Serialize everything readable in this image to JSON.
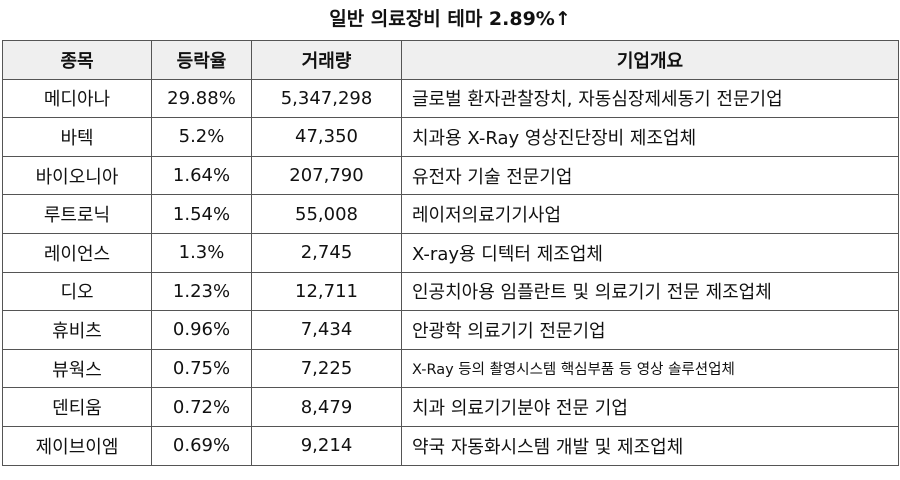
{
  "title": "일반 의료장비 테마 2.89%↑",
  "table": {
    "headers": [
      "종목",
      "등락율",
      "거래량",
      "기업개요"
    ],
    "rows": [
      {
        "name": "메디아나",
        "change": "29.88%",
        "volume": "5,347,298",
        "desc": "글로벌 환자관찰장치, 자동심장제세동기 전문기업"
      },
      {
        "name": "바텍",
        "change": "5.2%",
        "volume": "47,350",
        "desc": "치과용 X-Ray 영상진단장비 제조업체"
      },
      {
        "name": "바이오니아",
        "change": "1.64%",
        "volume": "207,790",
        "desc": "유전자 기술 전문기업"
      },
      {
        "name": "루트로닉",
        "change": "1.54%",
        "volume": "55,008",
        "desc": "레이저의료기기사업"
      },
      {
        "name": "레이언스",
        "change": "1.3%",
        "volume": "2,745",
        "desc": "X-ray용 디텍터 제조업체"
      },
      {
        "name": "디오",
        "change": "1.23%",
        "volume": "12,711",
        "desc": "인공치아용 임플란트 및 의료기기 전문 제조업체"
      },
      {
        "name": "휴비츠",
        "change": "0.96%",
        "volume": "7,434",
        "desc": "안광학 의료기기 전문기업"
      },
      {
        "name": "뷰웍스",
        "change": "0.75%",
        "volume": "7,225",
        "desc": "X-Ray 등의 촬영시스템 핵심부품 등 영상 솔루션업체"
      },
      {
        "name": "덴티움",
        "change": "0.72%",
        "volume": "8,479",
        "desc": "치과 의료기기분야 전문 기업"
      },
      {
        "name": "제이브이엠",
        "change": "0.69%",
        "volume": "9,214",
        "desc": "약국 자동화시스템 개발 및 제조업체"
      }
    ]
  }
}
